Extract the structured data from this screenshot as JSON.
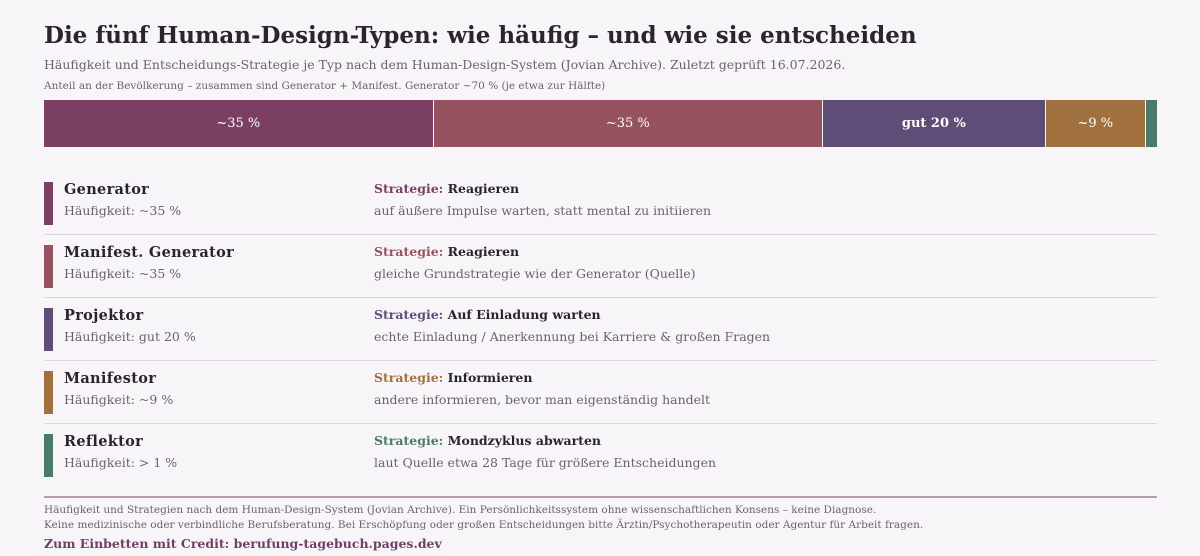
{
  "title": "Die fünf Human-Design-Typen: wie häufig – und wie sie entscheiden",
  "subtitle": "Häufigkeit und Entscheidungs-Strategie je Typ nach dem Human-Design-System (Jovian Archive). Zuletzt geprüft 16.07.2026.",
  "bar_note": "Anteil an der Bevölkerung – zusammen sind Generator + Manifest. Generator ~70 % (je etwa zur Hälfte)",
  "strategy_label": "Strategie:",
  "chart_data": {
    "type": "bar",
    "stacked": true,
    "orientation": "horizontal",
    "unit": "%",
    "categories": [
      "Generator",
      "Manifest. Generator",
      "Projektor",
      "Manifestor",
      "Reflektor"
    ],
    "values": [
      35,
      35,
      20,
      9,
      1
    ],
    "data_labels": [
      "~35 %",
      "~35 %",
      "gut 20 %",
      "~9 %",
      ""
    ],
    "colors": [
      "#7a3f62",
      "#97525f",
      "#5e4e77",
      "#a0713e",
      "#4a7a6c"
    ]
  },
  "types": [
    {
      "name": "Generator",
      "frequency": "Häufigkeit: ~35 %",
      "strategy": "Reagieren",
      "description": "auf äußere Impulse warten, statt mental zu initiieren",
      "color": "#7a3f62"
    },
    {
      "name": "Manifest. Generator",
      "frequency": "Häufigkeit: ~35 %",
      "strategy": "Reagieren",
      "description": "gleiche Grundstrategie wie der Generator (Quelle)",
      "color": "#97525f"
    },
    {
      "name": "Projektor",
      "frequency": "Häufigkeit: gut 20 %",
      "strategy": "Auf Einladung warten",
      "description": "echte Einladung / Anerkennung bei Karriere & großen Fragen",
      "color": "#5e4e77"
    },
    {
      "name": "Manifestor",
      "frequency": "Häufigkeit: ~9 %",
      "strategy": "Informieren",
      "description": "andere informieren, bevor man eigenständig handelt",
      "color": "#a0713e"
    },
    {
      "name": "Reflektor",
      "frequency": "Häufigkeit: > 1 %",
      "strategy": "Mondzyklus abwarten",
      "description": "laut Quelle etwa 28 Tage für größere Entscheidungen",
      "color": "#4a7a6c"
    }
  ],
  "footer": {
    "line1": "Häufigkeit und Strategien nach dem Human-Design-System (Jovian Archive). Ein Persönlichkeitssystem ohne wissenschaftlichen Konsens – keine Diagnose.",
    "line2": "Keine medizinische oder verbindliche Berufsberatung. Bei Erschöpfung oder großen Entscheidungen bitte Ärztin/Psychotherapeutin oder Agentur für Arbeit fragen.",
    "credit": "Zum Einbetten mit Credit: berufung-tagebuch.pages.dev"
  }
}
